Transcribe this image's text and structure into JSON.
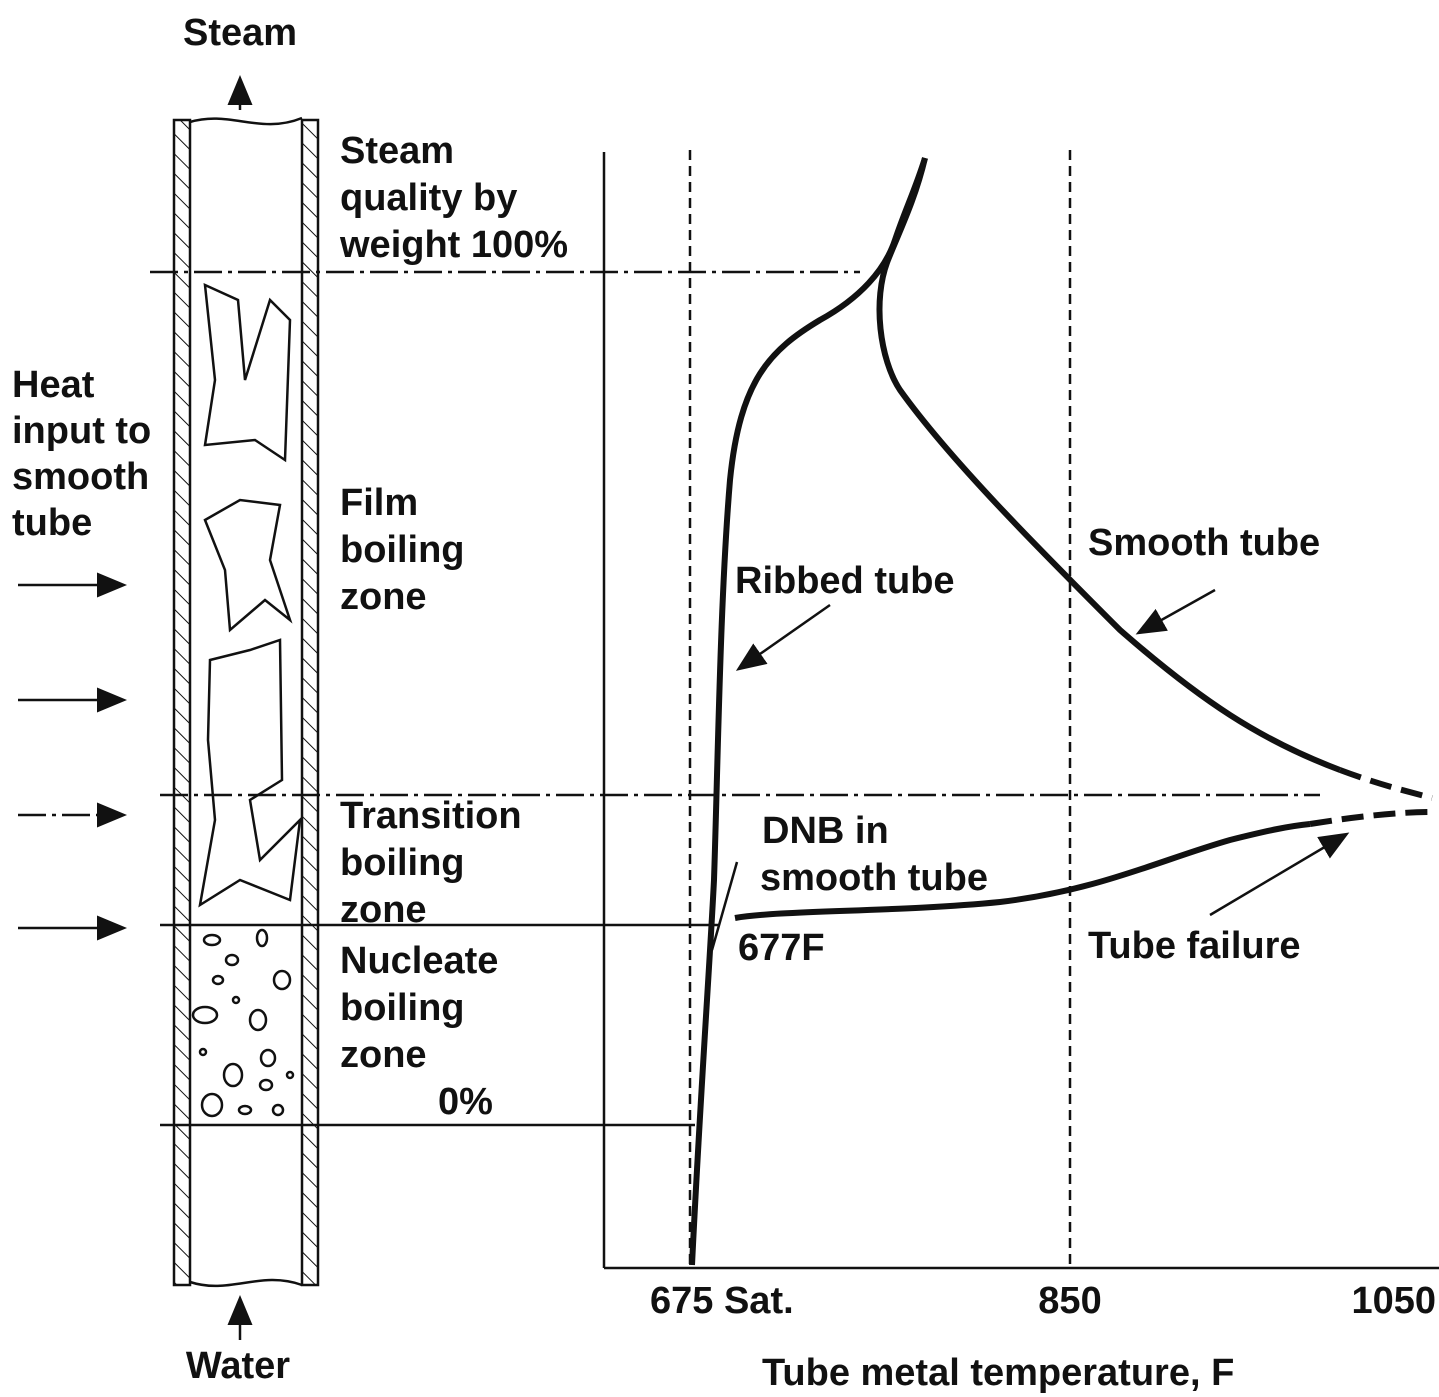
{
  "top_label": "Steam",
  "bottom_label": "Water",
  "heat_label": [
    "Heat",
    "input to",
    "smooth",
    "tube"
  ],
  "zones": {
    "quality": [
      "Steam",
      "quality by",
      "weight 100%"
    ],
    "film": [
      "Film",
      "boiling",
      "zone"
    ],
    "transition": [
      "Transition",
      "boiling",
      "zone"
    ],
    "nucleate": [
      "Nucleate",
      "boiling",
      "zone"
    ],
    "zero": "0%"
  },
  "curves": {
    "ribbed": "Ribbed tube",
    "smooth": "Smooth tube",
    "dnb": [
      "DNB in",
      "smooth tube"
    ],
    "dnb_temp": "677F",
    "failure": "Tube failure"
  },
  "axis": {
    "ticks": [
      "675 Sat.",
      "850",
      "1050"
    ],
    "title": "Tube metal temperature, F"
  }
}
